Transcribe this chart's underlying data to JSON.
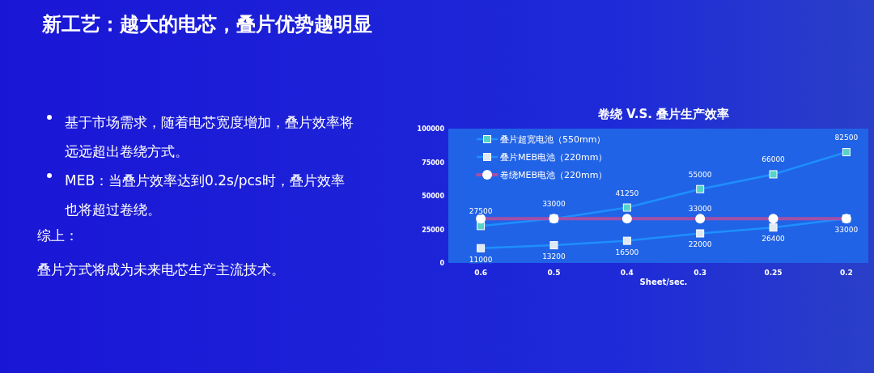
{
  "chart_data": {
    "type": "line",
    "title": "卷绕 V.S. 叠片生产效率",
    "xlabel": "Sheet/sec.",
    "categories": [
      "0.6",
      "0.5",
      "0.4",
      "0.3",
      "0.25",
      "0.2"
    ],
    "ylim": [
      0,
      100000
    ],
    "yticks": [
      0,
      25000,
      50000,
      75000,
      100000
    ],
    "grid": false,
    "legend": "top left",
    "line_style": "solid",
    "series": [
      {
        "name": "叠片超宽电池（550mm）",
        "color": "#1e8fff",
        "marker": "square",
        "values": [
          27500,
          33000,
          41250,
          55000,
          66000,
          82500
        ],
        "value_labels": [
          "27500",
          "33000",
          "41250",
          "55000",
          "66000",
          "82500"
        ]
      },
      {
        "name": "叠片MEB电池（220mm）",
        "color": "#1e8fff",
        "marker": "square",
        "values": [
          11000,
          13200,
          16500,
          22000,
          26400,
          33000
        ],
        "value_labels": [
          "11000",
          "13200",
          "16500",
          "22000",
          "26400",
          "33000"
        ]
      },
      {
        "name": "卷绕MEB电池（220mm）",
        "color": "#a44fa8",
        "marker": "circle",
        "values": [
          33000,
          33000,
          33000,
          33000,
          33000,
          33000
        ],
        "value_labels": [
          null,
          null,
          null,
          "33000",
          null,
          null
        ]
      }
    ],
    "annotations": [
      "新工艺：越大的电芯，叠片优势越明显",
      "基于市场需求，随着电芯宽度增加，叠片效率将远远超出卷绕方式。",
      "MEB：当叠片效率达到0.2s/pcs时，叠片效率也将超过卷绕。",
      "综上：",
      "叠片方式将成为未来电芯生产主流技术。"
    ]
  }
}
